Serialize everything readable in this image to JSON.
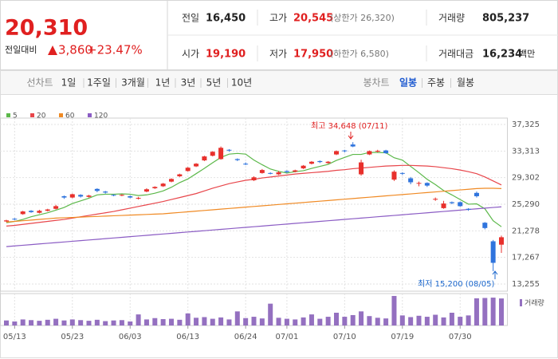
{
  "header": {
    "price": "20,310",
    "change_label": "전일대비",
    "change": "3,860",
    "change_rate": "+23.47%",
    "rows": [
      [
        {
          "label": "전일",
          "value": "16,450"
        },
        {
          "label": "고가",
          "value": "20,545",
          "note": "(상한가 26,320)"
        },
        {
          "label": "거래량",
          "value": "805,237"
        }
      ],
      [
        {
          "label": "시가",
          "value": "19,190"
        },
        {
          "label": "저가",
          "value": "17,950",
          "note": "(하한가 6,580)"
        },
        {
          "label": "거래대금",
          "value": "16,234",
          "unit": "백만"
        }
      ]
    ]
  },
  "tabs": {
    "line_label": "선차트",
    "line_periods": [
      "1일",
      "1주일",
      "3개월",
      "1년",
      "3년",
      "5년",
      "10년"
    ],
    "candle_label": "봉차트",
    "candle_periods": [
      "일봉",
      "주봉",
      "월봉"
    ],
    "selected_candle_period": 0
  },
  "chart_data": {
    "type": "candlestick",
    "categories": [
      null,
      "05/13",
      null,
      null,
      null,
      null,
      null,
      null,
      "05/23",
      null,
      null,
      null,
      null,
      null,
      null,
      "06/03",
      null,
      null,
      null,
      null,
      null,
      null,
      "06/13",
      null,
      null,
      null,
      null,
      null,
      null,
      "06/24",
      null,
      null,
      null,
      null,
      "07/01",
      null,
      null,
      null,
      null,
      null,
      null,
      "07/10",
      null,
      null,
      null,
      null,
      null,
      null,
      "07/19",
      null,
      null,
      null,
      null,
      null,
      null,
      "07/30",
      null,
      null,
      null,
      null,
      null
    ],
    "open": [
      22700,
      23100,
      23800,
      24300,
      24000,
      24300,
      24600,
      26500,
      26300,
      26700,
      26400,
      27600,
      27200,
      26700,
      26600,
      26500,
      26200,
      27200,
      27700,
      28000,
      28700,
      29500,
      30300,
      31000,
      31900,
      32600,
      32100,
      33500,
      32100,
      31400,
      28900,
      30000,
      30000,
      29800,
      30300,
      30200,
      30700,
      31400,
      31800,
      31500,
      32800,
      33400,
      34300,
      29800,
      32800,
      33300,
      33400,
      29000,
      30000,
      29200,
      28400,
      28500,
      26000,
      24700,
      25600,
      25600,
      24600,
      27000,
      22500,
      19700,
      19190
    ],
    "high": [
      22950,
      23200,
      24300,
      24400,
      24450,
      24600,
      25200,
      26600,
      26900,
      26800,
      26700,
      27700,
      27300,
      26800,
      26800,
      26600,
      26400,
      27700,
      28000,
      28500,
      29200,
      29900,
      30900,
      31500,
      32600,
      33300,
      34000,
      33600,
      32200,
      31600,
      29500,
      30600,
      30100,
      30300,
      30400,
      30500,
      31200,
      31800,
      31900,
      31800,
      33400,
      33500,
      34648,
      32000,
      33400,
      33500,
      33500,
      30400,
      30100,
      29400,
      28700,
      28600,
      26300,
      25800,
      25700,
      25700,
      24700,
      27200,
      22600,
      19900,
      20545
    ],
    "low": [
      22600,
      22900,
      23700,
      24000,
      23900,
      24200,
      24500,
      26100,
      26200,
      26300,
      26300,
      27100,
      26900,
      26500,
      26500,
      26200,
      26000,
      27100,
      27600,
      27900,
      28600,
      29400,
      30200,
      30900,
      31800,
      32500,
      32000,
      33200,
      31800,
      31200,
      28800,
      29900,
      29800,
      29700,
      30000,
      30100,
      30600,
      31300,
      31500,
      31400,
      32700,
      33100,
      33900,
      29600,
      32700,
      33100,
      32900,
      28800,
      29700,
      28300,
      28000,
      27900,
      25800,
      24600,
      25300,
      24900,
      24300,
      26300,
      21500,
      15200,
      17950
    ],
    "close": [
      22850,
      23000,
      24200,
      24100,
      24300,
      24500,
      25000,
      26300,
      26800,
      26450,
      26600,
      27300,
      27050,
      26650,
      26700,
      26300,
      26250,
      27550,
      27900,
      28400,
      29100,
      29800,
      30800,
      31400,
      32500,
      33200,
      33800,
      33400,
      31950,
      31350,
      29350,
      30450,
      29950,
      30100,
      30150,
      30400,
      31100,
      31700,
      31650,
      31700,
      33300,
      33300,
      34000,
      31600,
      33300,
      33350,
      33000,
      30200,
      29900,
      28600,
      28500,
      28100,
      26100,
      25400,
      25450,
      25000,
      24450,
      26500,
      21700,
      16450,
      20310
    ],
    "volume": [
      150000,
      120000,
      180000,
      160000,
      140000,
      170000,
      200000,
      150000,
      180000,
      160000,
      140000,
      170000,
      130000,
      150000,
      160000,
      120000,
      330000,
      180000,
      220000,
      190000,
      200000,
      170000,
      360000,
      230000,
      250000,
      200000,
      240000,
      180000,
      420000,
      220000,
      260000,
      210000,
      650000,
      230000,
      200000,
      180000,
      240000,
      330000,
      200000,
      260000,
      380000,
      260000,
      310000,
      420000,
      280000,
      230000,
      210000,
      880000,
      300000,
      250000,
      290000,
      260000,
      320000,
      240000,
      380000,
      260000,
      300000,
      810000,
      820000,
      830000,
      805237
    ],
    "up_color": "#e8302c",
    "down_color": "#2f74dd",
    "volume_color": "#9470c0",
    "volume_label": "거래량",
    "series": [
      {
        "name": "5",
        "color": "#5cb84a",
        "values": [
          22500,
          22700,
          23000,
          23400,
          23700,
          24000,
          24400,
          24800,
          25400,
          25800,
          26200,
          26700,
          26800,
          26800,
          26850,
          26800,
          26600,
          26700,
          26950,
          27300,
          27850,
          28550,
          29100,
          29900,
          30700,
          31550,
          32350,
          32850,
          32950,
          32850,
          31950,
          31250,
          30600,
          30250,
          30000,
          30200,
          30350,
          30700,
          31000,
          31300,
          31900,
          32350,
          32800,
          32800,
          33100,
          33100,
          33050,
          32300,
          31950,
          31000,
          30050,
          29050,
          28250,
          27350,
          26700,
          26000,
          25300,
          25350,
          24600,
          22800,
          21900
        ]
      },
      {
        "name": "20",
        "color": "#e8464b",
        "values": [
          22000,
          22100,
          22250,
          22400,
          22550,
          22700,
          22850,
          23000,
          23200,
          23400,
          23600,
          23800,
          24000,
          24200,
          24450,
          24700,
          24950,
          25200,
          25450,
          25700,
          26000,
          26300,
          26600,
          26900,
          27300,
          27700,
          28050,
          28400,
          28650,
          28900,
          29050,
          29250,
          29400,
          29550,
          29700,
          29850,
          29950,
          30050,
          30150,
          30250,
          30400,
          30500,
          30650,
          30750,
          30850,
          30950,
          31050,
          31100,
          31150,
          31150,
          31100,
          31050,
          30950,
          30800,
          30650,
          30450,
          30200,
          29900,
          29400,
          28800,
          28200
        ]
      },
      {
        "name": "60",
        "color": "#f08a24",
        "values": [
          22600,
          22700,
          22800,
          22900,
          23000,
          23100,
          23200,
          23250,
          23300,
          23350,
          23400,
          23450,
          23500,
          23550,
          23600,
          23650,
          23700,
          23750,
          23800,
          23850,
          23950,
          24050,
          24150,
          24250,
          24350,
          24450,
          24550,
          24650,
          24750,
          24850,
          24950,
          25050,
          25150,
          25250,
          25350,
          25450,
          25550,
          25650,
          25750,
          25850,
          25950,
          26050,
          26150,
          26250,
          26350,
          26450,
          26550,
          26650,
          26750,
          26850,
          26950,
          27050,
          27150,
          27250,
          27350,
          27450,
          27550,
          27650,
          27700,
          27700,
          27650
        ]
      },
      {
        "name": "120",
        "color": "#8b5cc4",
        "values": [
          18900,
          19000,
          19100,
          19200,
          19300,
          19400,
          19500,
          19600,
          19700,
          19800,
          19900,
          20000,
          20100,
          20200,
          20300,
          20400,
          20500,
          20600,
          20700,
          20800,
          20900,
          21000,
          21100,
          21200,
          21300,
          21400,
          21500,
          21600,
          21700,
          21800,
          21900,
          22000,
          22100,
          22200,
          22300,
          22400,
          22500,
          22600,
          22700,
          22800,
          22900,
          23000,
          23100,
          23200,
          23300,
          23400,
          23500,
          23600,
          23700,
          23800,
          23900,
          24000,
          24100,
          24200,
          24300,
          24400,
          24500,
          24600,
          24700,
          24800,
          24900
        ]
      }
    ],
    "ylim": [
      12175,
      38285
    ],
    "yticks": [
      {
        "value": 13255,
        "label": "13,255"
      },
      {
        "value": 17267,
        "label": "17,267"
      },
      {
        "value": 21278,
        "label": "21,278"
      },
      {
        "value": 25290,
        "label": "25,290"
      },
      {
        "value": 29302,
        "label": "29,302"
      },
      {
        "value": 33313,
        "label": "33,313"
      },
      {
        "value": 37325,
        "label": "37,325"
      }
    ],
    "grid": true,
    "annotations": [
      "최고 34,648 (07/11)",
      "최저 15,200 (08/05)"
    ]
  }
}
